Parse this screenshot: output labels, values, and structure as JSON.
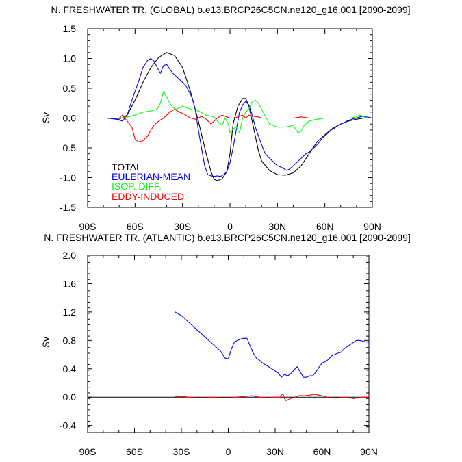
{
  "chart_data": [
    {
      "type": "line",
      "title": "N. FRESHWATER TR. (GLOBAL) b.e13.BRCP26C5CN.ne120_g16.001 [2090-2099]",
      "xlabel": "",
      "ylabel": "Sv",
      "xlim": [
        -90,
        90
      ],
      "ylim": [
        -1.5,
        1.5
      ],
      "xticks": [
        -90,
        -60,
        -30,
        0,
        30,
        60,
        90
      ],
      "xtick_labels": [
        "90S",
        "60S",
        "30S",
        "0",
        "30N",
        "60N",
        "90N"
      ],
      "yticks": [
        -1.5,
        -1.0,
        -0.5,
        0.0,
        0.5,
        1.0,
        1.5
      ],
      "ytick_labels": [
        "-1.5",
        "-1.0",
        "-0.5",
        "0.0",
        "0.5",
        "1.0",
        "1.5"
      ],
      "zero_line": true,
      "legend_position": "bottom-left",
      "series": [
        {
          "name": "TOTAL",
          "color": "#000000",
          "x": [
            -78,
            -70,
            -65,
            -60,
            -55,
            -50,
            -45,
            -40,
            -35,
            -30,
            -25,
            -20,
            -15,
            -12,
            -10,
            -8,
            -5,
            -2,
            0,
            2,
            5,
            8,
            10,
            12,
            14,
            16,
            18,
            20,
            25,
            30,
            35,
            40,
            45,
            50,
            55,
            60,
            65,
            70,
            75,
            80,
            85,
            90
          ],
          "y": [
            0.0,
            -0.02,
            0.05,
            0.3,
            0.6,
            0.85,
            1.02,
            1.1,
            1.05,
            0.85,
            0.45,
            -0.05,
            -0.6,
            -0.9,
            -1.03,
            -1.05,
            -1.02,
            -0.9,
            -0.6,
            -0.1,
            0.2,
            0.33,
            0.33,
            0.2,
            -0.05,
            -0.3,
            -0.55,
            -0.72,
            -0.88,
            -0.95,
            -0.96,
            -0.92,
            -0.8,
            -0.6,
            -0.4,
            -0.28,
            -0.17,
            -0.1,
            -0.05,
            -0.02,
            0.0,
            0.0
          ]
        },
        {
          "name": "EULERIAN-MEAN",
          "color": "#0000ff",
          "x": [
            -78,
            -72,
            -68,
            -65,
            -62,
            -58,
            -55,
            -52,
            -50,
            -48,
            -46,
            -44,
            -42,
            -40,
            -38,
            -36,
            -34,
            -32,
            -30,
            -28,
            -26,
            -24,
            -22,
            -20,
            -18,
            -16,
            -14,
            -12,
            -10,
            -8,
            -6,
            -4,
            -2,
            0,
            2,
            4,
            6,
            8,
            10,
            12,
            14,
            16,
            18,
            20,
            22,
            24,
            26,
            28,
            30,
            32,
            34,
            36,
            38,
            40,
            42,
            44,
            46,
            48,
            50,
            52,
            54,
            56,
            58,
            60,
            62,
            64,
            66,
            68,
            70,
            72,
            74,
            76,
            78,
            80,
            82,
            84,
            86,
            88,
            90
          ],
          "y": [
            0.0,
            -0.02,
            -0.05,
            0.05,
            0.3,
            0.6,
            0.85,
            0.97,
            1.0,
            0.95,
            0.85,
            0.75,
            0.88,
            0.9,
            0.82,
            0.75,
            0.7,
            0.65,
            0.6,
            0.55,
            0.45,
            0.35,
            0.15,
            -0.2,
            -0.5,
            -0.8,
            -0.95,
            -0.97,
            -0.98,
            -0.97,
            -0.98,
            -0.95,
            -0.9,
            -0.75,
            -0.5,
            -0.2,
            0.1,
            0.22,
            0.28,
            0.22,
            0.05,
            -0.15,
            -0.3,
            -0.45,
            -0.58,
            -0.65,
            -0.7,
            -0.75,
            -0.8,
            -0.82,
            -0.85,
            -0.88,
            -0.85,
            -0.8,
            -0.75,
            -0.7,
            -0.65,
            -0.6,
            -0.57,
            -0.52,
            -0.48,
            -0.42,
            -0.35,
            -0.3,
            -0.25,
            -0.2,
            -0.17,
            -0.13,
            -0.1,
            -0.08,
            -0.05,
            -0.03,
            -0.01,
            0.0,
            0.02,
            0.03,
            0.02,
            0.01,
            0.0
          ]
        },
        {
          "name": "ISOP. DIFF.",
          "color": "#00ff00",
          "x": [
            -78,
            -70,
            -65,
            -60,
            -55,
            -50,
            -46,
            -44,
            -42,
            -40,
            -38,
            -36,
            -34,
            -30,
            -25,
            -20,
            -15,
            -10,
            -8,
            -5,
            -3,
            -1,
            0,
            2,
            4,
            6,
            8,
            10,
            12,
            14,
            16,
            18,
            20,
            22,
            25,
            30,
            35,
            40,
            43,
            45,
            47,
            50,
            55,
            60,
            65,
            70,
            75,
            80,
            82,
            84,
            86,
            90
          ],
          "y": [
            0.0,
            0.0,
            0.02,
            0.05,
            0.1,
            0.12,
            0.15,
            0.25,
            0.45,
            0.35,
            0.25,
            0.18,
            0.15,
            0.2,
            0.15,
            0.12,
            0.05,
            0.02,
            -0.05,
            -0.12,
            0.0,
            -0.1,
            -0.25,
            -0.18,
            -0.15,
            -0.25,
            0.0,
            0.1,
            0.15,
            0.27,
            0.3,
            0.25,
            0.15,
            0.05,
            -0.1,
            -0.15,
            -0.15,
            -0.12,
            -0.25,
            -0.22,
            -0.12,
            -0.05,
            -0.02,
            0.0,
            0.0,
            0.0,
            0.0,
            0.02,
            0.05,
            0.03,
            0.0,
            0.0
          ]
        },
        {
          "name": "EDDY-INDUCED",
          "color": "#ff0000",
          "x": [
            -78,
            -70,
            -68,
            -65,
            -62,
            -60,
            -58,
            -55,
            -52,
            -50,
            -48,
            -45,
            -42,
            -40,
            -38,
            -35,
            -32,
            -30,
            -28,
            -25,
            -22,
            -20,
            -18,
            -15,
            -12,
            -10,
            -8,
            -5,
            -2,
            0,
            2,
            5,
            8,
            10,
            12,
            15,
            18,
            20,
            25,
            30,
            35,
            40,
            45,
            50,
            55,
            60,
            65,
            70,
            75,
            80,
            85,
            90
          ],
          "y": [
            0.0,
            0.0,
            0.05,
            -0.05,
            -0.15,
            -0.35,
            -0.4,
            -0.38,
            -0.3,
            -0.2,
            -0.12,
            -0.05,
            0.0,
            0.05,
            0.1,
            0.15,
            0.1,
            0.08,
            0.05,
            0.0,
            -0.02,
            0.0,
            0.03,
            -0.02,
            -0.1,
            -0.05,
            0.0,
            0.05,
            0.02,
            0.0,
            0.0,
            0.02,
            0.05,
            0.0,
            0.05,
            0.03,
            0.02,
            0.0,
            0.0,
            0.0,
            0.0,
            0.0,
            0.02,
            0.0,
            0.0,
            0.0,
            0.0,
            0.0,
            0.0,
            0.0,
            0.0,
            0.0
          ]
        }
      ]
    },
    {
      "type": "line",
      "title": "N. FRESHWATER TR. (ATLANTIC) b.e13.BRCP26C5CN.ne120_g16.001 [2090-2099]",
      "xlabel": "",
      "ylabel": "Sv",
      "xlim": [
        -90,
        90
      ],
      "ylim": [
        -0.5,
        2.0
      ],
      "xticks": [
        -90,
        -60,
        -30,
        0,
        30,
        60,
        90
      ],
      "xtick_labels": [
        "90S",
        "60S",
        "30S",
        "0",
        "30N",
        "60N",
        "90N"
      ],
      "yticks": [
        -0.4,
        0.0,
        0.4,
        0.8,
        1.2,
        1.6,
        2.0
      ],
      "ytick_labels": [
        "-0.4",
        "0.0",
        "0.4",
        "0.8",
        "1.2",
        "1.6",
        "2.0"
      ],
      "zero_line": true,
      "series": [
        {
          "name": "EULERIAN-MEAN",
          "color": "#0000ff",
          "x": [
            -34,
            -30,
            -25,
            -20,
            -15,
            -10,
            -5,
            -2,
            0,
            2,
            4,
            6,
            8,
            10,
            12,
            14,
            16,
            18,
            20,
            22,
            25,
            28,
            30,
            32,
            34,
            36,
            38,
            40,
            42,
            44,
            46,
            48,
            50,
            52,
            54,
            56,
            58,
            60,
            62,
            64,
            66,
            68,
            70,
            72,
            74,
            76,
            78,
            80,
            82,
            84,
            86,
            88,
            90
          ],
          "y": [
            1.2,
            1.15,
            1.05,
            0.95,
            0.85,
            0.75,
            0.65,
            0.55,
            0.54,
            0.68,
            0.78,
            0.8,
            0.82,
            0.83,
            0.83,
            0.72,
            0.62,
            0.55,
            0.52,
            0.48,
            0.44,
            0.4,
            0.37,
            0.34,
            0.28,
            0.32,
            0.3,
            0.33,
            0.38,
            0.43,
            0.36,
            0.28,
            0.28,
            0.3,
            0.3,
            0.35,
            0.42,
            0.48,
            0.5,
            0.53,
            0.58,
            0.6,
            0.62,
            0.63,
            0.68,
            0.71,
            0.74,
            0.77,
            0.8,
            0.8,
            0.79,
            0.78,
            0.77
          ]
        },
        {
          "name": "EDDY-INDUCED",
          "color": "#ff0000",
          "x": [
            -34,
            -30,
            -25,
            -20,
            -15,
            -10,
            -5,
            0,
            5,
            10,
            15,
            20,
            25,
            30,
            33,
            35,
            36,
            37,
            40,
            45,
            50,
            55,
            60,
            65,
            70,
            75,
            80,
            85,
            90
          ],
          "y": [
            0.01,
            0.01,
            0.0,
            -0.01,
            -0.01,
            0.0,
            -0.01,
            -0.01,
            0.0,
            0.01,
            0.02,
            0.0,
            -0.01,
            0.0,
            0.0,
            0.05,
            -0.02,
            -0.05,
            -0.02,
            0.02,
            0.02,
            0.04,
            0.02,
            -0.01,
            -0.01,
            0.0,
            -0.02,
            0.0,
            0.0
          ]
        }
      ]
    }
  ]
}
